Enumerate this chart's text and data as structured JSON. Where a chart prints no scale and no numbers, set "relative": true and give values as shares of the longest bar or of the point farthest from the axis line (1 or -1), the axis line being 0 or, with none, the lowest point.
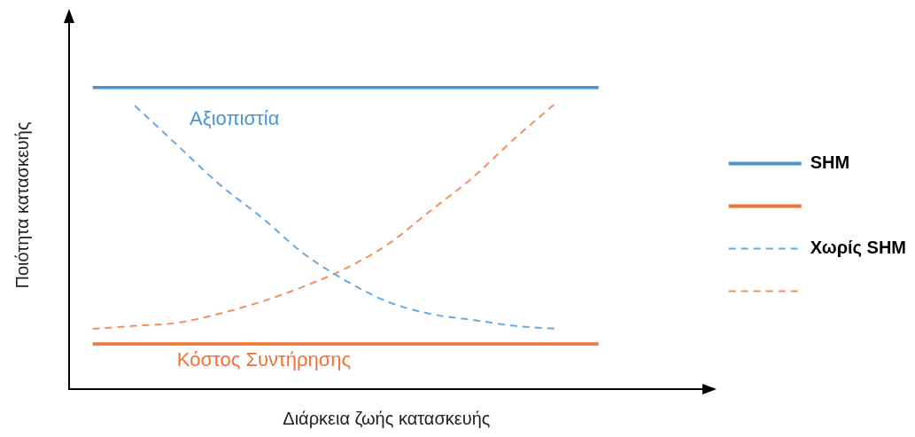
{
  "chart_data": {
    "type": "line",
    "relative": true,
    "xlabel": "Διάρκεια ζωής κατασκευής",
    "ylabel": "Ποιότητα κατασκευής",
    "categories": [
      null,
      null,
      null,
      null,
      null,
      null,
      null,
      null,
      null,
      null,
      null,
      null,
      null
    ],
    "series": [
      {
        "name": "SHM",
        "color": "#4a94d4",
        "line_style": "solid",
        "values": [
          1,
          1,
          1,
          1,
          1,
          1,
          1,
          1,
          1,
          1,
          1,
          1,
          1
        ]
      },
      {
        "color": "#f07234",
        "line_style": "solid",
        "values": [
          0.15,
          0.15,
          0.15,
          0.15,
          0.15,
          0.15,
          0.15,
          0.15,
          0.15,
          0.15,
          0.15,
          0.15,
          0.15
        ]
      },
      {
        "name": "Χωρίς SHM",
        "color": "#6aa8e0",
        "line_style": "dashed",
        "values": [
          null,
          0.94,
          0.81,
          0.68,
          0.57,
          0.45,
          0.36,
          0.29,
          0.25,
          0.23,
          0.21,
          0.2,
          null
        ]
      },
      {
        "color": "#f5905a",
        "line_style": "dashed",
        "values": [
          0.2,
          0.21,
          0.22,
          0.25,
          0.29,
          0.34,
          0.4,
          0.48,
          0.59,
          0.7,
          0.83,
          0.95,
          null
        ]
      }
    ],
    "annotations": [
      "Αξιοπιστία",
      "Κόστος Συντήρησης"
    ],
    "legend": "right",
    "marker": "none",
    "grid": false
  }
}
